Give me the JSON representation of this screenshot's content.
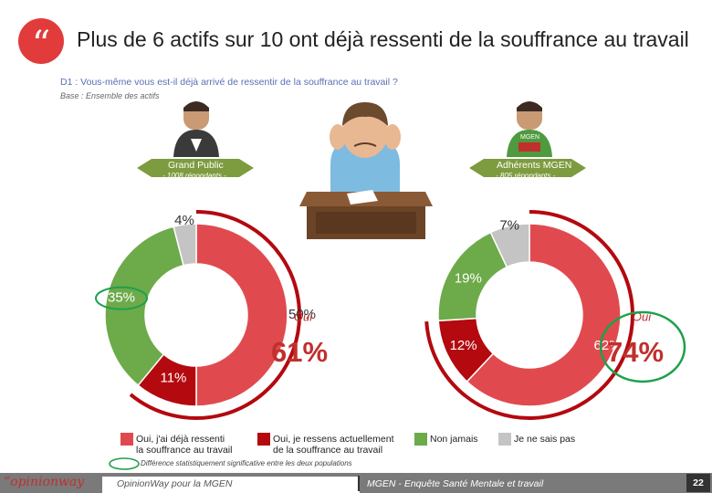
{
  "header": {
    "quote_icon": "quote-icon",
    "quote_glyph": "“",
    "title": "Plus de 6 actifs sur 10 ont déjà ressenti de la souffrance au travail",
    "question": "D1 : Vous-même vous est-il déjà arrivé de ressentir de la souffrance au travail ?",
    "base": "Base : Ensemble des actifs"
  },
  "populations": {
    "left": {
      "name": "Grand Public",
      "respondents": "- 1008 répondants -"
    },
    "right": {
      "name": "Adhérents MGEN",
      "respondents": "- 805 répondants -",
      "badge": "MGEN"
    }
  },
  "colors": {
    "accent_red": "#e04a4e",
    "dark_red": "#b3090f",
    "green": "#6daa4a",
    "grey": "#c4c4c4",
    "highlight_green": "#1ea04b",
    "total_red": "#c0302d"
  },
  "chart_data": [
    {
      "type": "pie",
      "subtype": "donut",
      "population": "Grand Public",
      "categories": [
        "Oui, j'ai déjà ressenti la souffrance au travail",
        "Oui, je ressens actuellement de la souffrance au travail",
        "Non jamais",
        "Je ne sais pas"
      ],
      "values": [
        50,
        11,
        35,
        4
      ],
      "labels": [
        "50%",
        "11%",
        "35%",
        "4%"
      ],
      "total_label": "Oui",
      "total_value": "61%",
      "significant": [
        "35%"
      ]
    },
    {
      "type": "pie",
      "subtype": "donut",
      "population": "Adhérents MGEN",
      "categories": [
        "Oui, j'ai déjà ressenti la souffrance au travail",
        "Oui, je ressens actuellement de la souffrance au travail",
        "Non jamais",
        "Je ne sais pas"
      ],
      "values": [
        62,
        12,
        19,
        7
      ],
      "labels": [
        "62%",
        "12%",
        "19%",
        "7%"
      ],
      "total_label": "Oui",
      "total_value": "74%",
      "significant": [
        "74%"
      ]
    }
  ],
  "legend": {
    "items": [
      {
        "line1": "Oui, j'ai déjà ressenti",
        "line2": "la souffrance au travail",
        "color": "#e04a4e"
      },
      {
        "line1": "Oui, je ressens actuellement",
        "line2": "de la souffrance au travail",
        "color": "#b3090f"
      },
      {
        "line1": "Non jamais",
        "line2": "",
        "color": "#6daa4a"
      },
      {
        "line1": "Je ne sais pas",
        "line2": "",
        "color": "#c4c4c4"
      }
    ],
    "significance_note": "Différence statistiquement significative entre les deux populations"
  },
  "footer": {
    "logo": "“opinionway",
    "left_text": "OpinionWay pour la MGEN",
    "right_text": "MGEN - Enquête Santé Mentale et travail",
    "page": "22"
  }
}
